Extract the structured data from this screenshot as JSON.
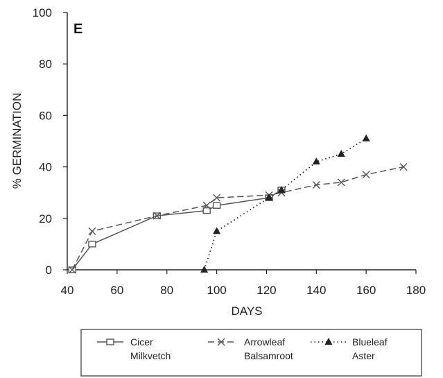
{
  "chart_data": {
    "type": "line",
    "panel_label": "E",
    "xlabel": "DAYS",
    "ylabel": "% GERMINATION",
    "xlim": [
      40,
      180
    ],
    "ylim": [
      0,
      100
    ],
    "xticks": [
      40,
      60,
      80,
      100,
      120,
      140,
      160,
      180
    ],
    "yticks": [
      0,
      20,
      40,
      60,
      80,
      100
    ],
    "grid": false,
    "legend_position": "bottom",
    "series": [
      {
        "name": "Cicer Milkvetch",
        "legend_lines": [
          "Cicer",
          "Milkvetch"
        ],
        "marker": "square-open",
        "line_style": "solid",
        "color": "#555555",
        "x": [
          42,
          50,
          76,
          96,
          100,
          121,
          126
        ],
        "y": [
          0,
          10,
          21,
          23,
          25,
          28,
          31
        ]
      },
      {
        "name": "Arrowleaf Balsamroot",
        "legend_lines": [
          "Arrowleaf",
          "Balsamroot"
        ],
        "marker": "cross",
        "line_style": "dashed",
        "color": "#555555",
        "x": [
          42,
          50,
          76,
          96,
          100,
          121,
          126,
          140,
          150,
          160,
          175
        ],
        "y": [
          0,
          15,
          21,
          25,
          28,
          29,
          30,
          33,
          34,
          37,
          40
        ]
      },
      {
        "name": "Blueleaf Aster",
        "legend_lines": [
          "Blueleaf",
          "Aster"
        ],
        "marker": "triangle-filled",
        "line_style": "dotted",
        "color": "#222222",
        "x": [
          95,
          100,
          121,
          126,
          140,
          150,
          160
        ],
        "y": [
          0,
          15,
          28,
          31,
          42,
          45,
          51
        ]
      }
    ]
  }
}
